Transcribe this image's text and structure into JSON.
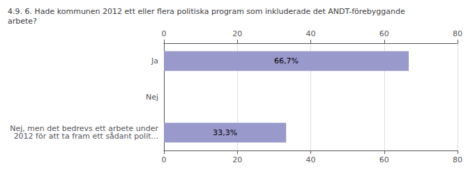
{
  "chart_data": {
    "type": "bar",
    "orientation": "horizontal",
    "title": "4.9. 6. Hade kommunen 2012 ett eller flera politiska program som inkluderade det ANDT-förebyggande\narbete?",
    "categories": [
      "Nej, men det bedrevs ett arbete under\n2012 för att ta fram ett sådant polit...",
      "Nej",
      "Ja"
    ],
    "values": [
      33.3,
      0.0,
      66.7
    ],
    "value_labels": [
      "33,3%",
      null,
      "66,7%"
    ],
    "data_labels": true,
    "color": "#9999cc",
    "xlim": [
      0,
      80
    ],
    "xticks": [
      0,
      20,
      40,
      60,
      80
    ],
    "grid": true
  }
}
